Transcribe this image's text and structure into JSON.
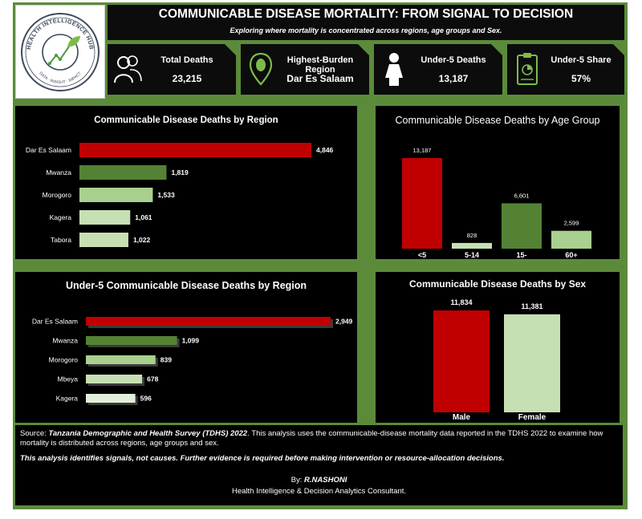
{
  "header": {
    "title": "COMMUNICABLE DISEASE MORTALITY: FROM SIGNAL TO DECISION",
    "subtitle": "Exploring where mortality is concentrated across regions, age groups and Sex."
  },
  "logo": {
    "text": "HEALTH INTELLIGENCE HUB",
    "tagline": "DATA · INSIGHT · IMPACT"
  },
  "kpis": [
    {
      "label": "Total Deaths",
      "value": "23,215",
      "icon": "people-icon"
    },
    {
      "label": "Highest-Burden Region",
      "value": "Dar Es Salaam",
      "icon": "map-pin-icon"
    },
    {
      "label": "Under-5 Deaths",
      "value": "13,187",
      "icon": "child-icon"
    },
    {
      "label": "Under-5 Share",
      "value": "57%",
      "icon": "clipboard-icon"
    }
  ],
  "chart_data": [
    {
      "type": "bar",
      "orientation": "horizontal",
      "title": "Communicable Disease Deaths by Region",
      "categories": [
        "Dar Es Salaam",
        "Mwanza",
        "Morogoro",
        "Kagera",
        "Tabora"
      ],
      "values": [
        4846,
        1819,
        1533,
        1061,
        1022
      ],
      "data_labels": [
        "4,846",
        "1,819",
        "1,533",
        "1,061",
        "1,022"
      ],
      "colors": [
        "#c00000",
        "#548235",
        "#a9d08e",
        "#c6e0b4",
        "#c6e0b4"
      ]
    },
    {
      "type": "bar",
      "orientation": "vertical",
      "title": "Communicable Disease Deaths by Age Group",
      "categories": [
        "<5",
        "5-14",
        "15-",
        "60+"
      ],
      "values": [
        13187,
        828,
        6601,
        2599
      ],
      "data_labels": [
        "13,187",
        "828",
        "6,601",
        "2,599"
      ],
      "colors": [
        "#c00000",
        "#c6e0b4",
        "#548235",
        "#a9d08e"
      ]
    },
    {
      "type": "bar",
      "orientation": "horizontal",
      "title": "Under-5 Communicable Disease Deaths by Region",
      "categories": [
        "Dar Es Salaam",
        "Mwanza",
        "Morogoro",
        "Mbeya",
        "Kagera"
      ],
      "values": [
        2949,
        1099,
        839,
        678,
        596
      ],
      "data_labels": [
        "2,949",
        "1,099",
        "839",
        "678",
        "596"
      ],
      "colors": [
        "#c00000",
        "#548235",
        "#a9d08e",
        "#c6e0b4",
        "#e2efda"
      ]
    },
    {
      "type": "bar",
      "orientation": "vertical",
      "title": "Communicable Disease Deaths by Sex",
      "categories": [
        "Male",
        "Female"
      ],
      "values": [
        11834,
        11381
      ],
      "data_labels": [
        "11,834",
        "11,381"
      ],
      "colors": [
        "#c00000",
        "#c6e0b4"
      ]
    }
  ],
  "footer": {
    "source_prefix": "Source: ",
    "source_name": "Tanzania Demographic and Health Survey (TDHS) 2022",
    "source_rest": ". This analysis uses the communicable-disease mortality data reported in the TDHS 2022 to examine how mortality is distributed across regions, age groups and sex.",
    "disclaimer": "This analysis identifies signals, not causes. Further evidence is required before making intervention or resource-allocation decisions.",
    "by_label": "By: ",
    "author": "R.NASHONI",
    "role": "Health Intelligence & Decision Analytics Consultant."
  }
}
